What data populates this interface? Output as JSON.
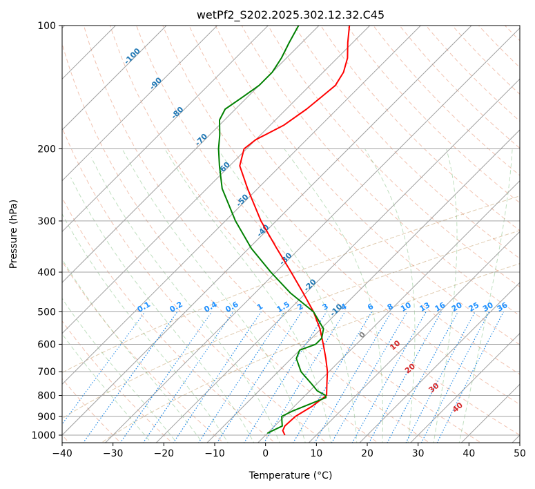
{
  "chart_data": {
    "type": "line",
    "title": "wetPf2_S202.2025.302.12.32.C45",
    "xlabel": "Temperature (°C)",
    "ylabel": "Pressure (hPa)",
    "xlim": [
      -40,
      50
    ],
    "ylim": [
      1050,
      100
    ],
    "x_ticks": [
      -40,
      -30,
      -20,
      -10,
      0,
      10,
      20,
      30,
      40,
      50
    ],
    "x_tick_labels": [
      "−40",
      "−30",
      "−20",
      "−10",
      "0",
      "10",
      "20",
      "30",
      "40",
      "50"
    ],
    "y_ticks": [
      1000,
      900,
      800,
      700,
      600,
      500,
      400,
      300,
      200,
      100
    ],
    "y_tick_labels": [
      "1000",
      "900",
      "800",
      "700",
      "600",
      "500",
      "400",
      "300",
      "200",
      "100"
    ],
    "skew_per_decade": 45,
    "colors": {
      "temperature": "#ff0000",
      "dewpoint": "#008000",
      "isotherm": "#a0a0a0",
      "isobar": "#a0a0a0",
      "dry_adiabat": "#e07850",
      "moist_adiabat": "#60b060",
      "mixing_ratio": "#1e88e5",
      "temp_label": "#1f77b4",
      "dry_label": "#d62728",
      "zero_label": "#808080",
      "mixing_label": "#1e90ff",
      "decor_curve": "#d2b48c"
    },
    "series": [
      {
        "name": "Temperature",
        "key": "temperature",
        "points": [
          {
            "p": 1000,
            "t": 3.8
          },
          {
            "p": 975,
            "t": 2.5
          },
          {
            "p": 950,
            "t": 2.0
          },
          {
            "p": 900,
            "t": 2.2
          },
          {
            "p": 850,
            "t": 3.5
          },
          {
            "p": 800,
            "t": 4.2
          },
          {
            "p": 750,
            "t": 2.0
          },
          {
            "p": 700,
            "t": -0.3
          },
          {
            "p": 650,
            "t": -3.2
          },
          {
            "p": 600,
            "t": -6.5
          },
          {
            "p": 550,
            "t": -10.2
          },
          {
            "p": 500,
            "t": -14.8
          },
          {
            "p": 450,
            "t": -20.5
          },
          {
            "p": 400,
            "t": -27.0
          },
          {
            "p": 350,
            "t": -34.5
          },
          {
            "p": 300,
            "t": -43.0
          },
          {
            "p": 250,
            "t": -52.0
          },
          {
            "p": 220,
            "t": -58.0
          },
          {
            "p": 200,
            "t": -60.5
          },
          {
            "p": 190,
            "t": -60.0
          },
          {
            "p": 175,
            "t": -57.3
          },
          {
            "p": 160,
            "t": -56.0
          },
          {
            "p": 150,
            "t": -55.5
          },
          {
            "p": 140,
            "t": -55.0
          },
          {
            "p": 130,
            "t": -56.0
          },
          {
            "p": 120,
            "t": -58.0
          },
          {
            "p": 110,
            "t": -61.0
          },
          {
            "p": 100,
            "t": -64.0
          }
        ]
      },
      {
        "name": "Dewpoint",
        "key": "dewpoint",
        "points": [
          {
            "p": 990,
            "t": 0.0
          },
          {
            "p": 975,
            "t": 0.5
          },
          {
            "p": 950,
            "t": 1.5
          },
          {
            "p": 925,
            "t": 0.5
          },
          {
            "p": 900,
            "t": -0.5
          },
          {
            "p": 875,
            "t": 0.5
          },
          {
            "p": 850,
            "t": 2.0
          },
          {
            "p": 810,
            "t": 4.5
          },
          {
            "p": 800,
            "t": 4.0
          },
          {
            "p": 780,
            "t": 1.5
          },
          {
            "p": 750,
            "t": -1.0
          },
          {
            "p": 700,
            "t": -5.5
          },
          {
            "p": 650,
            "t": -9.0
          },
          {
            "p": 620,
            "t": -10.0
          },
          {
            "p": 600,
            "t": -8.0
          },
          {
            "p": 580,
            "t": -8.0
          },
          {
            "p": 550,
            "t": -9.5
          },
          {
            "p": 500,
            "t": -14.8
          },
          {
            "p": 450,
            "t": -23.0
          },
          {
            "p": 400,
            "t": -31.0
          },
          {
            "p": 350,
            "t": -39.5
          },
          {
            "p": 300,
            "t": -48.0
          },
          {
            "p": 250,
            "t": -57.0
          },
          {
            "p": 220,
            "t": -62.0
          },
          {
            "p": 200,
            "t": -65.5
          },
          {
            "p": 185,
            "t": -68.0
          },
          {
            "p": 170,
            "t": -71.0
          },
          {
            "p": 160,
            "t": -72.0
          },
          {
            "p": 150,
            "t": -71.0
          },
          {
            "p": 140,
            "t": -70.0
          },
          {
            "p": 130,
            "t": -70.0
          },
          {
            "p": 120,
            "t": -71.0
          },
          {
            "p": 110,
            "t": -72.5
          },
          {
            "p": 100,
            "t": -74.0
          }
        ]
      }
    ],
    "isotherm_labels": [
      {
        "text": "-100",
        "t": -100,
        "p": 120
      },
      {
        "text": "-90",
        "t": -90,
        "p": 140
      },
      {
        "text": "-80",
        "t": -80,
        "p": 165
      },
      {
        "text": "-70",
        "t": -70,
        "p": 192
      },
      {
        "text": "-60",
        "t": -60,
        "p": 225
      },
      {
        "text": "-50",
        "t": -50,
        "p": 270
      },
      {
        "text": "-40",
        "t": -40,
        "p": 320
      },
      {
        "text": "-30",
        "t": -30,
        "p": 375
      },
      {
        "text": "-20",
        "t": -20,
        "p": 435
      },
      {
        "text": "-10",
        "t": -10,
        "p": 500
      },
      {
        "text": "0",
        "t": 0,
        "p": 575
      }
    ],
    "dry_adiabat_labels": [
      {
        "text": "10",
        "t": 8.5,
        "p": 610
      },
      {
        "text": "20",
        "t": 16.0,
        "p": 695
      },
      {
        "text": "30",
        "t": 24.5,
        "p": 775
      },
      {
        "text": "40",
        "t": 33.0,
        "p": 865
      }
    ],
    "mixing_ratio_lines": [
      0.1,
      0.2,
      0.4,
      0.6,
      1,
      1.5,
      2,
      3,
      4,
      6,
      8,
      10,
      13,
      16,
      20,
      25,
      30,
      36
    ],
    "mixing_ratio_labels": [
      "0.1",
      "0.2",
      "0.4",
      "0.6",
      "1",
      "1.5",
      "2",
      "3",
      "4",
      "6",
      "8",
      "10",
      "13",
      "16",
      "20",
      "25",
      "30",
      "36"
    ]
  }
}
